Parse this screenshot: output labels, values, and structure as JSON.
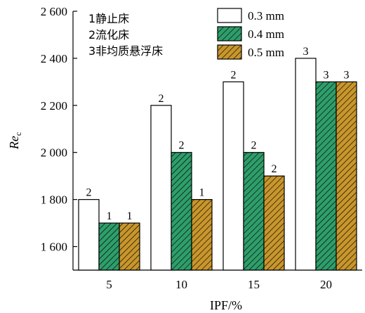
{
  "chart_data": {
    "type": "bar",
    "categories": [
      "5",
      "10",
      "15",
      "20"
    ],
    "xlabel": "IPF/%",
    "ylabel_main": "Re",
    "ylabel_sub": "c",
    "ylim": [
      1500,
      2600
    ],
    "yticks": [
      1600,
      1800,
      2000,
      2200,
      2400,
      2600
    ],
    "ytick_labels": [
      "1 600",
      "1 800",
      "2 000",
      "2 200",
      "2 400",
      "2 600"
    ],
    "series": [
      {
        "name": "0.3 mm",
        "values": [
          1800,
          2200,
          2300,
          2400
        ],
        "labels": [
          "2",
          "2",
          "2",
          "3"
        ],
        "fill": "#ffffff",
        "pattern": "none"
      },
      {
        "name": "0.4 mm",
        "values": [
          1700,
          2000,
          2000,
          2300
        ],
        "labels": [
          "1",
          "2",
          "2",
          "3"
        ],
        "fill": "#2e9e6a",
        "pattern": "hatch"
      },
      {
        "name": "0.5 mm",
        "values": [
          1700,
          1800,
          1900,
          2300
        ],
        "labels": [
          "1",
          "1",
          "2",
          "3"
        ],
        "fill": "#c8962c",
        "pattern": "hatch"
      }
    ],
    "notes": [
      "1静止床",
      "2流化床",
      "3非均质悬浮床"
    ],
    "legend_position": "top-right",
    "grid": false
  }
}
